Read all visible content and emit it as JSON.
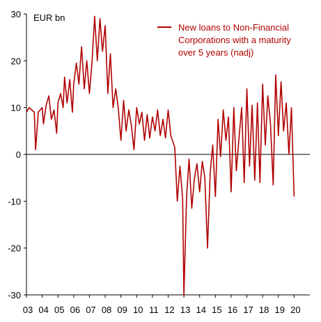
{
  "chart_data": {
    "type": "line",
    "unit_label": "EUR bn",
    "title": "",
    "xlabel": "",
    "ylabel": "",
    "ylim": [
      -30,
      30
    ],
    "yticks": [
      30,
      20,
      10,
      0,
      -10,
      -20,
      -30
    ],
    "xlim": [
      2003.0,
      2021.0
    ],
    "xticks": [
      {
        "label": "03",
        "x": 2003.0
      },
      {
        "label": "04",
        "x": 2004.0
      },
      {
        "label": "05",
        "x": 2005.0
      },
      {
        "label": "06",
        "x": 2006.0
      },
      {
        "label": "07",
        "x": 2007.0
      },
      {
        "label": "08",
        "x": 2008.0
      },
      {
        "label": "09",
        "x": 2009.0
      },
      {
        "label": "10",
        "x": 2010.0
      },
      {
        "label": "11",
        "x": 2011.0
      },
      {
        "label": "12",
        "x": 2012.0
      },
      {
        "label": "13",
        "x": 2013.0
      },
      {
        "label": "14",
        "x": 2014.0
      },
      {
        "label": "15",
        "x": 2015.0
      },
      {
        "label": "16",
        "x": 2016.0
      },
      {
        "label": "17",
        "x": 2017.0
      },
      {
        "label": "18",
        "x": 2018.0
      },
      {
        "label": "19",
        "x": 2019.0
      },
      {
        "label": "20",
        "x": 2020.0
      }
    ],
    "legend_position": "top-right",
    "grid": false,
    "series": [
      {
        "name": "New loans to Non-Financial Corporations with a maturity over 5 years (nadj)",
        "color": "#b00000",
        "points": [
          [
            2003.0,
            9.0
          ],
          [
            2003.17,
            10.0
          ],
          [
            2003.33,
            9.5
          ],
          [
            2003.5,
            9.0
          ],
          [
            2003.58,
            1.0
          ],
          [
            2003.75,
            9.0
          ],
          [
            2004.0,
            10.0
          ],
          [
            2004.08,
            6.5
          ],
          [
            2004.25,
            10.5
          ],
          [
            2004.42,
            12.5
          ],
          [
            2004.58,
            7.5
          ],
          [
            2004.75,
            9.5
          ],
          [
            2004.92,
            4.5
          ],
          [
            2005.0,
            11.0
          ],
          [
            2005.17,
            13.0
          ],
          [
            2005.33,
            10.0
          ],
          [
            2005.42,
            16.5
          ],
          [
            2005.58,
            11.0
          ],
          [
            2005.75,
            16.0
          ],
          [
            2005.92,
            9.0
          ],
          [
            2006.0,
            15.0
          ],
          [
            2006.17,
            19.5
          ],
          [
            2006.33,
            15.0
          ],
          [
            2006.5,
            23.0
          ],
          [
            2006.67,
            14.0
          ],
          [
            2006.83,
            20.0
          ],
          [
            2007.0,
            13.0
          ],
          [
            2007.17,
            20.0
          ],
          [
            2007.33,
            29.5
          ],
          [
            2007.5,
            20.0
          ],
          [
            2007.67,
            29.0
          ],
          [
            2007.83,
            22.0
          ],
          [
            2008.0,
            27.5
          ],
          [
            2008.17,
            13.0
          ],
          [
            2008.33,
            21.5
          ],
          [
            2008.5,
            10.0
          ],
          [
            2008.67,
            14.0
          ],
          [
            2008.83,
            10.0
          ],
          [
            2009.0,
            3.0
          ],
          [
            2009.17,
            11.5
          ],
          [
            2009.33,
            5.0
          ],
          [
            2009.5,
            9.5
          ],
          [
            2009.67,
            6.0
          ],
          [
            2009.83,
            1.0
          ],
          [
            2010.0,
            10.0
          ],
          [
            2010.17,
            6.5
          ],
          [
            2010.33,
            9.0
          ],
          [
            2010.5,
            3.0
          ],
          [
            2010.67,
            8.5
          ],
          [
            2010.83,
            3.5
          ],
          [
            2011.0,
            8.0
          ],
          [
            2011.17,
            5.0
          ],
          [
            2011.33,
            9.5
          ],
          [
            2011.5,
            4.0
          ],
          [
            2011.67,
            7.5
          ],
          [
            2011.83,
            3.5
          ],
          [
            2012.0,
            9.5
          ],
          [
            2012.17,
            4.0
          ],
          [
            2012.42,
            1.5
          ],
          [
            2012.58,
            -10.0
          ],
          [
            2012.75,
            -2.5
          ],
          [
            2012.92,
            -9.5
          ],
          [
            2013.0,
            -30.0
          ],
          [
            2013.17,
            -9.0
          ],
          [
            2013.33,
            -1.0
          ],
          [
            2013.5,
            -11.5
          ],
          [
            2013.67,
            -5.0
          ],
          [
            2013.83,
            -2.0
          ],
          [
            2014.0,
            -8.0
          ],
          [
            2014.17,
            -1.5
          ],
          [
            2014.33,
            -5.0
          ],
          [
            2014.5,
            -20.0
          ],
          [
            2014.67,
            -4.0
          ],
          [
            2014.83,
            2.0
          ],
          [
            2015.0,
            -9.0
          ],
          [
            2015.17,
            7.5
          ],
          [
            2015.33,
            -0.5
          ],
          [
            2015.5,
            9.5
          ],
          [
            2015.67,
            3.0
          ],
          [
            2015.83,
            8.0
          ],
          [
            2016.0,
            -8.0
          ],
          [
            2016.17,
            10.0
          ],
          [
            2016.33,
            -3.5
          ],
          [
            2016.5,
            3.5
          ],
          [
            2016.67,
            10.0
          ],
          [
            2016.83,
            -6.0
          ],
          [
            2017.0,
            14.0
          ],
          [
            2017.17,
            -2.5
          ],
          [
            2017.33,
            10.5
          ],
          [
            2017.5,
            -5.5
          ],
          [
            2017.67,
            11.0
          ],
          [
            2017.83,
            -6.0
          ],
          [
            2018.0,
            15.0
          ],
          [
            2018.17,
            2.0
          ],
          [
            2018.33,
            12.5
          ],
          [
            2018.5,
            6.5
          ],
          [
            2018.67,
            -6.5
          ],
          [
            2018.83,
            17.0
          ],
          [
            2019.0,
            4.0
          ],
          [
            2019.17,
            15.5
          ],
          [
            2019.33,
            5.0
          ],
          [
            2019.5,
            11.0
          ],
          [
            2019.67,
            0.0
          ],
          [
            2019.83,
            10.0
          ],
          [
            2020.0,
            -9.0
          ]
        ]
      }
    ]
  }
}
